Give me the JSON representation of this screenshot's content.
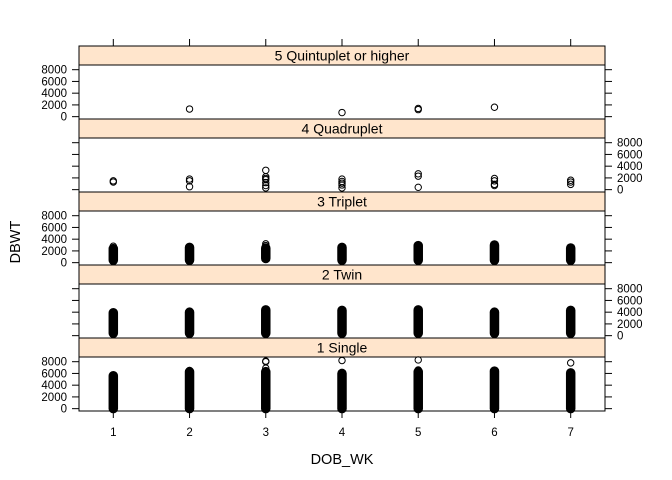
{
  "chart_data": {
    "type": "scatter",
    "layout": "lattice-stacked-panels",
    "xlabel": "DOB_WK",
    "ylabel": "DBWT",
    "x_ticks": [
      1,
      2,
      3,
      4,
      5,
      6,
      7
    ],
    "y_ticks": [
      0,
      2000,
      4000,
      6000,
      8000
    ],
    "xlim": [
      0.55,
      7.45
    ],
    "ylim": [
      -400,
      8800
    ],
    "colors": {
      "strip": "#ffe5cc",
      "point": "#000000",
      "frame": "#000000"
    },
    "panels": [
      {
        "strip": "1 Single",
        "yaxis_side": "left",
        "columns": [
          {
            "x": 1,
            "min": 0,
            "max": 5600
          },
          {
            "x": 2,
            "min": 0,
            "max": 6300
          },
          {
            "x": 3,
            "min": 0,
            "max": 6300
          },
          {
            "x": 4,
            "min": 0,
            "max": 6000
          },
          {
            "x": 5,
            "min": 0,
            "max": 6300
          },
          {
            "x": 6,
            "min": 0,
            "max": 6400
          },
          {
            "x": 7,
            "min": 0,
            "max": 6100
          }
        ],
        "points": [
          {
            "x": 3,
            "y": 6900
          },
          {
            "x": 3,
            "y": 8000
          },
          {
            "x": 3,
            "y": 8100
          },
          {
            "x": 4,
            "y": 8200
          },
          {
            "x": 5,
            "y": 8300
          },
          {
            "x": 7,
            "y": 7800
          },
          {
            "x": 2,
            "y": 6500
          },
          {
            "x": 5,
            "y": 6600
          }
        ]
      },
      {
        "strip": "2 Twin",
        "yaxis_side": "right",
        "columns": [
          {
            "x": 1,
            "min": 400,
            "max": 3900
          },
          {
            "x": 2,
            "min": 400,
            "max": 4000
          },
          {
            "x": 3,
            "min": 400,
            "max": 4400
          },
          {
            "x": 4,
            "min": 400,
            "max": 4300
          },
          {
            "x": 5,
            "min": 400,
            "max": 4400
          },
          {
            "x": 6,
            "min": 400,
            "max": 4000
          },
          {
            "x": 7,
            "min": 400,
            "max": 4300
          }
        ],
        "points": []
      },
      {
        "strip": "3 Triplet",
        "yaxis_side": "left",
        "columns": [
          {
            "x": 1,
            "min": 400,
            "max": 2400
          },
          {
            "x": 2,
            "min": 400,
            "max": 2600
          },
          {
            "x": 3,
            "min": 700,
            "max": 2500
          },
          {
            "x": 4,
            "min": 400,
            "max": 2600
          },
          {
            "x": 5,
            "min": 400,
            "max": 2900
          },
          {
            "x": 6,
            "min": 400,
            "max": 3000
          },
          {
            "x": 7,
            "min": 400,
            "max": 2500
          }
        ],
        "points": [
          {
            "x": 1,
            "y": 2800
          },
          {
            "x": 1,
            "y": 200
          },
          {
            "x": 3,
            "y": 3200
          },
          {
            "x": 3,
            "y": 2900
          },
          {
            "x": 7,
            "y": 200
          },
          {
            "x": 5,
            "y": 300
          }
        ]
      },
      {
        "strip": "4 Quadruplet",
        "yaxis_side": "right",
        "columns": [],
        "points": [
          {
            "x": 1,
            "y": 1500
          },
          {
            "x": 1,
            "y": 1300
          },
          {
            "x": 2,
            "y": 1800
          },
          {
            "x": 2,
            "y": 1500
          },
          {
            "x": 2,
            "y": 500
          },
          {
            "x": 3,
            "y": 3300
          },
          {
            "x": 3,
            "y": 2200
          },
          {
            "x": 3,
            "y": 1900
          },
          {
            "x": 3,
            "y": 1700
          },
          {
            "x": 3,
            "y": 1200
          },
          {
            "x": 3,
            "y": 700
          },
          {
            "x": 3,
            "y": 300
          },
          {
            "x": 4,
            "y": 1800
          },
          {
            "x": 4,
            "y": 1400
          },
          {
            "x": 4,
            "y": 1100
          },
          {
            "x": 4,
            "y": 800
          },
          {
            "x": 4,
            "y": 300
          },
          {
            "x": 5,
            "y": 2700
          },
          {
            "x": 5,
            "y": 2300
          },
          {
            "x": 5,
            "y": 400
          },
          {
            "x": 6,
            "y": 1900
          },
          {
            "x": 6,
            "y": 1500
          },
          {
            "x": 6,
            "y": 900
          },
          {
            "x": 6,
            "y": 700
          },
          {
            "x": 7,
            "y": 1600
          },
          {
            "x": 7,
            "y": 1300
          },
          {
            "x": 7,
            "y": 900
          }
        ]
      },
      {
        "strip": "5 Quintuplet or higher",
        "yaxis_side": "left",
        "columns": [],
        "points": [
          {
            "x": 2,
            "y": 1300
          },
          {
            "x": 4,
            "y": 700
          },
          {
            "x": 5,
            "y": 1400
          },
          {
            "x": 5,
            "y": 1200
          },
          {
            "x": 6,
            "y": 1600
          }
        ]
      }
    ]
  }
}
